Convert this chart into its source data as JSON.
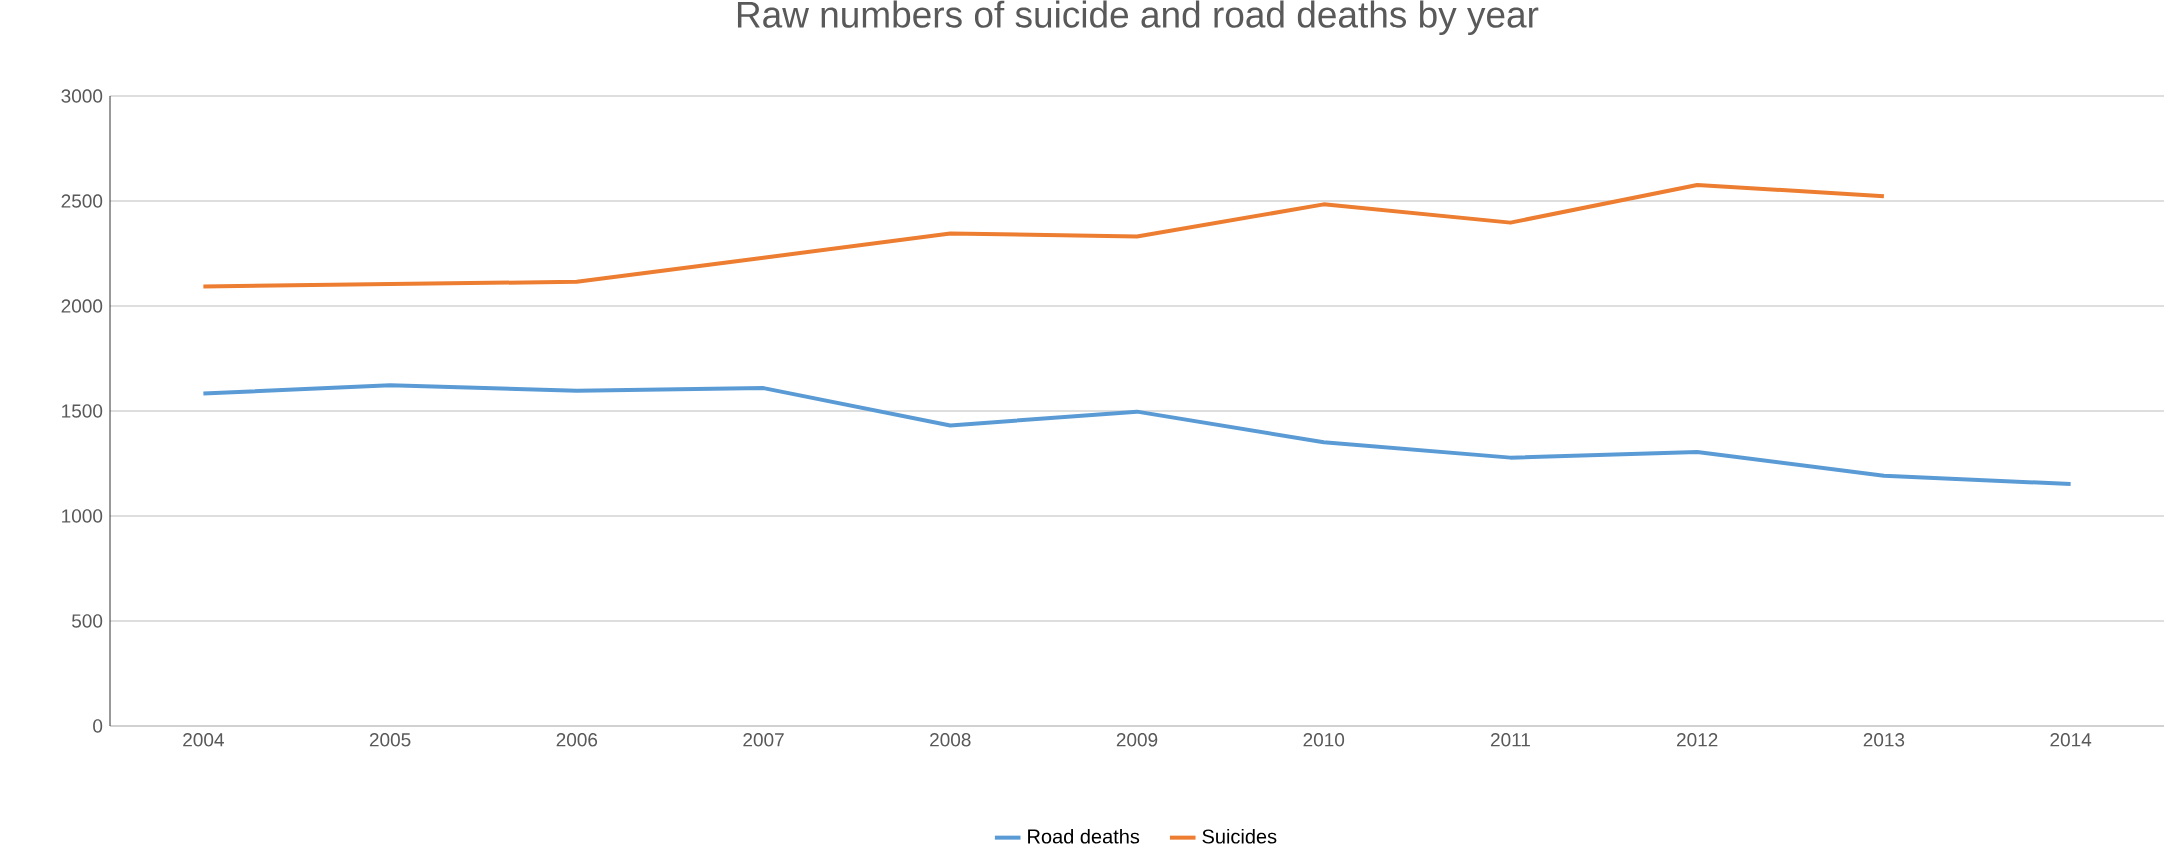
{
  "chart_data": {
    "type": "line",
    "title": "Raw numbers of suicide and road deaths by year",
    "categories": [
      "2004",
      "2005",
      "2006",
      "2007",
      "2008",
      "2009",
      "2010",
      "2011",
      "2012",
      "2013",
      "2014"
    ],
    "series": [
      {
        "name": "Road deaths",
        "color": "#5b9bd5",
        "values": [
          1583,
          1623,
          1596,
          1609,
          1431,
          1497,
          1351,
          1278,
          1305,
          1192,
          1152
        ]
      },
      {
        "name": "Suicides",
        "color": "#ed7d31",
        "values": [
          2093,
          2105,
          2115,
          2230,
          2345,
          2331,
          2484,
          2397,
          2576,
          2523,
          null
        ]
      }
    ],
    "ylim": [
      0,
      3000
    ],
    "yticks": [
      0,
      500,
      1000,
      1500,
      2000,
      2500,
      3000
    ],
    "grid": "y",
    "legend": "bottom",
    "marker": "none",
    "line_style": "solid"
  }
}
